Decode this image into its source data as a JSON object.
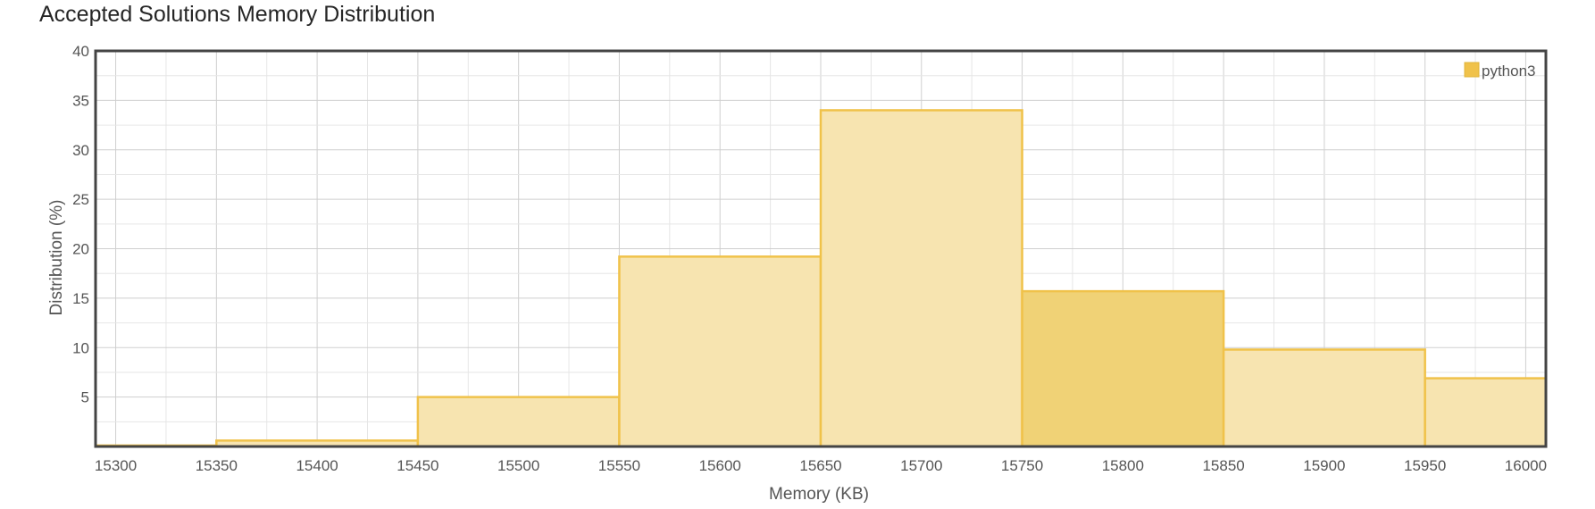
{
  "chart_data": {
    "type": "bar",
    "title": "Accepted Solutions Memory Distribution",
    "xlabel": "Memory (KB)",
    "ylabel": "Distribution (%)",
    "xlim": [
      15290,
      16010
    ],
    "ylim": [
      0,
      40
    ],
    "x_ticks": [
      15300,
      15350,
      15400,
      15450,
      15500,
      15550,
      15600,
      15650,
      15700,
      15750,
      15800,
      15850,
      15900,
      15950,
      16000
    ],
    "y_ticks": [
      5,
      10,
      15,
      20,
      25,
      30,
      35,
      40
    ],
    "grid": true,
    "legend_position": "top-right",
    "series": [
      {
        "name": "python3",
        "color": "#f0c24a",
        "bins": [
          {
            "x0": 15250,
            "x1": 15350,
            "value": 0.1
          },
          {
            "x0": 15350,
            "x1": 15450,
            "value": 0.6
          },
          {
            "x0": 15450,
            "x1": 15550,
            "value": 5.0
          },
          {
            "x0": 15550,
            "x1": 15650,
            "value": 19.2
          },
          {
            "x0": 15650,
            "x1": 15750,
            "value": 34.0
          },
          {
            "x0": 15750,
            "x1": 15850,
            "value": 15.7,
            "highlighted": true
          },
          {
            "x0": 15850,
            "x1": 15950,
            "value": 9.8
          },
          {
            "x0": 15950,
            "x1": 16050,
            "value": 6.9
          }
        ]
      }
    ]
  }
}
